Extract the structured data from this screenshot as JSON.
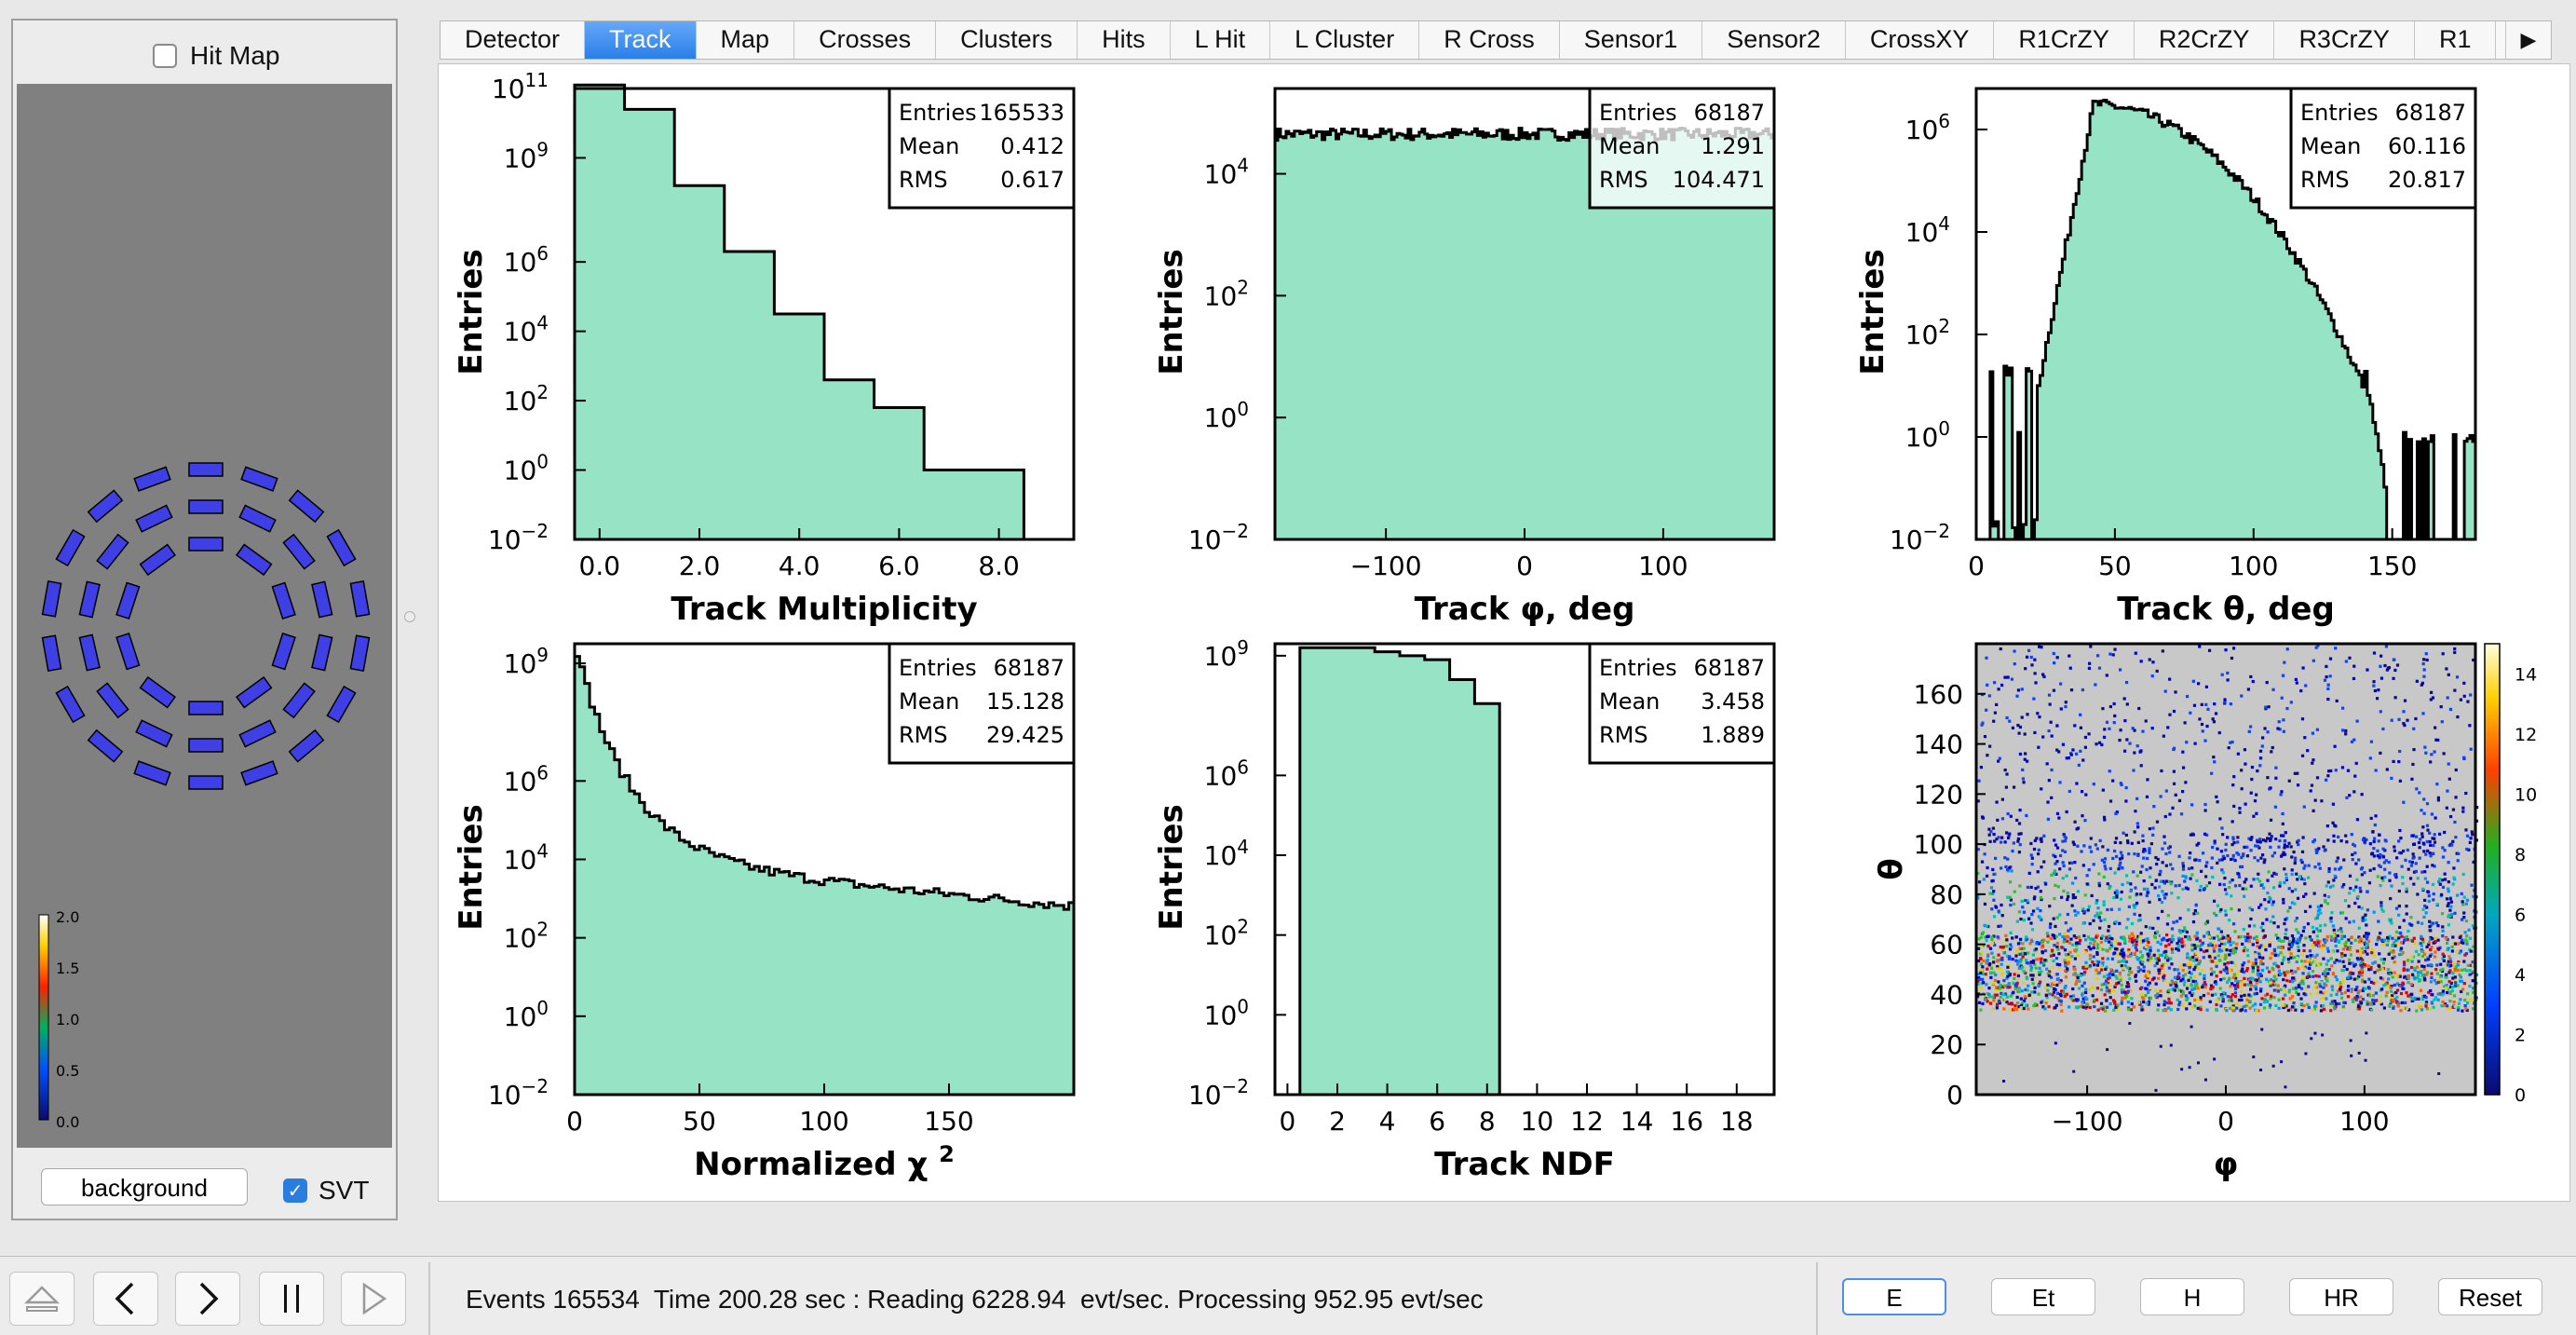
{
  "left_panel": {
    "hitmap_label": "Hit Map",
    "hitmap_checked": false,
    "background_button": "background",
    "svt_label": "SVT",
    "svt_checked": true,
    "colorbar": {
      "ticks": [
        "2.0",
        "1.5",
        "1.0",
        "0.5",
        "0.0"
      ]
    },
    "detector": {
      "element_color": "#3f3fe6",
      "layers": 6
    }
  },
  "tabs": [
    {
      "label": "Detector"
    },
    {
      "label": "Track",
      "active": true
    },
    {
      "label": "Map"
    },
    {
      "label": "Crosses"
    },
    {
      "label": "Clusters"
    },
    {
      "label": "Hits"
    },
    {
      "label": "L Hit"
    },
    {
      "label": "L Cluster"
    },
    {
      "label": "R Cross"
    },
    {
      "label": "Sensor1"
    },
    {
      "label": "Sensor2"
    },
    {
      "label": "CrossXY"
    },
    {
      "label": "R1CrZY"
    },
    {
      "label": "R2CrZY"
    },
    {
      "label": "R3CrZY"
    },
    {
      "label": "R1"
    }
  ],
  "tab_scroll_icon": "play-right-icon",
  "status": {
    "text": "Events 165534  Time 200.28 sec : Reading 6228.94  evt/sec. Processing 952.95 evt/sec"
  },
  "controls": [
    "eject-icon",
    "chevron-left-icon",
    "chevron-right-icon",
    "pause-icon",
    "play-icon"
  ],
  "view_buttons": [
    {
      "label": "E",
      "focused": true
    },
    {
      "label": "Et"
    },
    {
      "label": "H"
    },
    {
      "label": "HR"
    },
    {
      "label": "Reset"
    }
  ],
  "colors": {
    "fill": "#97e3c5",
    "accent": "#2b7fe9"
  },
  "chart_data": [
    {
      "type": "bar",
      "log_y": true,
      "xlabel": "Track Multiplicity",
      "ylabel": "Entries",
      "xlim": [
        -0.5,
        9.5
      ],
      "ylim_exp": [
        -2,
        11
      ],
      "y_ticks": [
        "10^-2",
        "10^0",
        "10^2",
        "10^4",
        "10^6",
        "10^9",
        "10^11"
      ],
      "y_tick_exps": [
        -2,
        0,
        2,
        4,
        6,
        9,
        11
      ],
      "x_ticks": [
        "0.0",
        "2.0",
        "4.0",
        "6.0",
        "8.0"
      ],
      "x_tick_vals": [
        0,
        2,
        4,
        6,
        8
      ],
      "bins": [
        {
          "x0": -0.5,
          "x1": 0.5,
          "exp": 11.1
        },
        {
          "x0": 0.5,
          "x1": 1.5,
          "exp": 10.4
        },
        {
          "x0": 1.5,
          "x1": 2.5,
          "exp": 8.2
        },
        {
          "x0": 2.5,
          "x1": 3.5,
          "exp": 6.3
        },
        {
          "x0": 3.5,
          "x1": 4.5,
          "exp": 4.5
        },
        {
          "x0": 4.5,
          "x1": 5.5,
          "exp": 2.6
        },
        {
          "x0": 5.5,
          "x1": 6.5,
          "exp": 1.8
        },
        {
          "x0": 6.5,
          "x1": 8.5,
          "exp": 0
        }
      ],
      "stats": {
        "Entries": "165533",
        "Mean": "0.412",
        "RMS": "0.617"
      }
    },
    {
      "type": "bar",
      "log_y": true,
      "xlabel": "Track φ, deg",
      "ylabel": "Entries",
      "xlim": [
        -180,
        180
      ],
      "ylim_exp": [
        -2,
        5.4
      ],
      "y_ticks": [
        "10^-2",
        "10^0",
        "10^2",
        "10^4"
      ],
      "y_tick_exps": [
        -2,
        0,
        2,
        4
      ],
      "x_ticks": [
        "−100",
        "0",
        "100"
      ],
      "x_tick_vals": [
        -100,
        0,
        100
      ],
      "flat": {
        "exp": 4.65,
        "noise": 0.1,
        "nbins": 180
      },
      "stats": {
        "Entries": "68187",
        "Mean": "1.291",
        "RMS": "104.471"
      }
    },
    {
      "type": "bar",
      "log_y": true,
      "xlabel": "Track θ, deg",
      "ylabel": "Entries",
      "xlim": [
        0,
        180
      ],
      "ylim_exp": [
        -2,
        6.8
      ],
      "y_ticks": [
        "10^-2",
        "10^0",
        "10^2",
        "10^4",
        "10^6"
      ],
      "y_tick_exps": [
        -2,
        0,
        2,
        4,
        6
      ],
      "x_ticks": [
        "0",
        "50",
        "100",
        "150"
      ],
      "x_tick_vals": [
        0,
        50,
        100,
        150
      ],
      "peak": {
        "x": 42,
        "exp": 6.5
      },
      "stats": {
        "Entries": "68187",
        "Mean": "60.116",
        "RMS": "20.817"
      }
    },
    {
      "type": "bar",
      "log_y": true,
      "xlabel": "Normalized χ ",
      "xlabel_sup": "2",
      "ylabel": "Entries",
      "xlim": [
        0,
        200
      ],
      "ylim_exp": [
        -2,
        9.5
      ],
      "y_ticks": [
        "10^-2",
        "10^0",
        "10^2",
        "10^4",
        "10^6",
        "10^9"
      ],
      "y_tick_exps": [
        -2,
        0,
        2,
        4,
        6,
        9
      ],
      "x_ticks": [
        "0",
        "50",
        "100",
        "150"
      ],
      "x_tick_vals": [
        0,
        50,
        100,
        150
      ],
      "stats": {
        "Entries": "68187",
        "Mean": "15.128",
        "RMS": "29.425"
      }
    },
    {
      "type": "bar",
      "log_y": true,
      "xlabel": "Track NDF",
      "ylabel": "Entries",
      "xlim": [
        -0.5,
        19.5
      ],
      "ylim_exp": [
        -2,
        9.3
      ],
      "y_ticks": [
        "10^-2",
        "10^0",
        "10^2",
        "10^4",
        "10^6",
        "10^9"
      ],
      "y_tick_exps": [
        -2,
        0,
        2,
        4,
        6,
        9
      ],
      "x_ticks": [
        "0",
        "2",
        "4",
        "6",
        "8",
        "10",
        "12",
        "14",
        "16",
        "18"
      ],
      "x_tick_vals": [
        0,
        2,
        4,
        6,
        8,
        10,
        12,
        14,
        16,
        18
      ],
      "bins": [
        {
          "x0": 0.5,
          "x1": 1.5,
          "exp": 9.2
        },
        {
          "x0": 1.5,
          "x1": 2.5,
          "exp": 9.2
        },
        {
          "x0": 2.5,
          "x1": 3.5,
          "exp": 9.2
        },
        {
          "x0": 3.5,
          "x1": 4.5,
          "exp": 9.1
        },
        {
          "x0": 4.5,
          "x1": 5.5,
          "exp": 9.0
        },
        {
          "x0": 5.5,
          "x1": 6.5,
          "exp": 8.9
        },
        {
          "x0": 6.5,
          "x1": 7.5,
          "exp": 8.4
        },
        {
          "x0": 7.5,
          "x1": 8.5,
          "exp": 7.8
        }
      ],
      "stats": {
        "Entries": "68187",
        "Mean": "3.458",
        "RMS": "1.889"
      }
    },
    {
      "type": "heatmap",
      "xlabel": "φ",
      "ylabel": "θ",
      "xlim": [
        -180,
        180
      ],
      "ylim": [
        0,
        180
      ],
      "x_ticks": [
        "−100",
        "0",
        "100"
      ],
      "x_tick_vals": [
        -100,
        0,
        100
      ],
      "y_ticks": [
        "0",
        "20",
        "40",
        "60",
        "80",
        "100",
        "120",
        "140",
        "160"
      ],
      "y_tick_vals": [
        0,
        20,
        40,
        60,
        80,
        100,
        120,
        140,
        160
      ],
      "z_ticks": [
        "0",
        "2",
        "4",
        "6",
        "8",
        "10",
        "12",
        "14"
      ],
      "zlim": [
        0,
        15
      ],
      "background": "#c8c8c8"
    }
  ]
}
